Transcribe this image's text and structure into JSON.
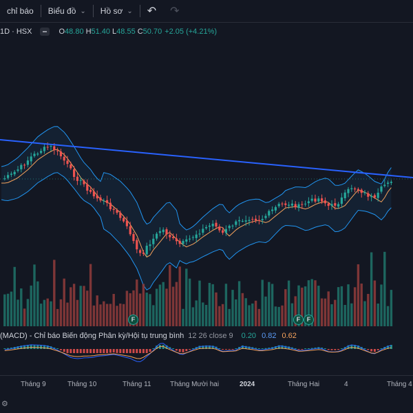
{
  "toolbar": {
    "indicators_label": "chỉ báo",
    "chart_type_label": "Biểu đồ",
    "profile_label": "Hồ sơ",
    "undo_icon": "undo-icon",
    "redo_icon": "redo-icon"
  },
  "legend": {
    "symbol": "1D · HSX",
    "open_key": "O",
    "open": "48.80",
    "high_key": "H",
    "high": "51.40",
    "low_key": "L",
    "low": "48.55",
    "close_key": "C",
    "close": "50.70",
    "change": "+2.05 (+4.21%)"
  },
  "macd_legend": {
    "name": "(MACD) - Chỉ báo Biến động Phân kỳ/Hội tụ trung bình",
    "params": "12 26 close 9",
    "v1": "0.20",
    "v2": "0.82",
    "v3": "0.62"
  },
  "x_axis": {
    "labels": [
      "Tháng 9",
      "Tháng 10",
      "Tháng 11",
      "Tháng Mười hai",
      "2024",
      "Tháng Hai",
      "4",
      "Tháng 4"
    ]
  },
  "event_markers": [
    "F",
    "F",
    "F"
  ],
  "colors": {
    "up": "#26a69a",
    "down": "#ef5350",
    "trendline": "#2962ff",
    "bollinger": "#2196f3",
    "ma": "#f7a35c",
    "background": "#131722"
  },
  "chart_data": {
    "type": "candlestick",
    "price_range": [
      44,
      62
    ],
    "series": [
      {
        "name": "price",
        "close_last": 50.7
      }
    ]
  }
}
